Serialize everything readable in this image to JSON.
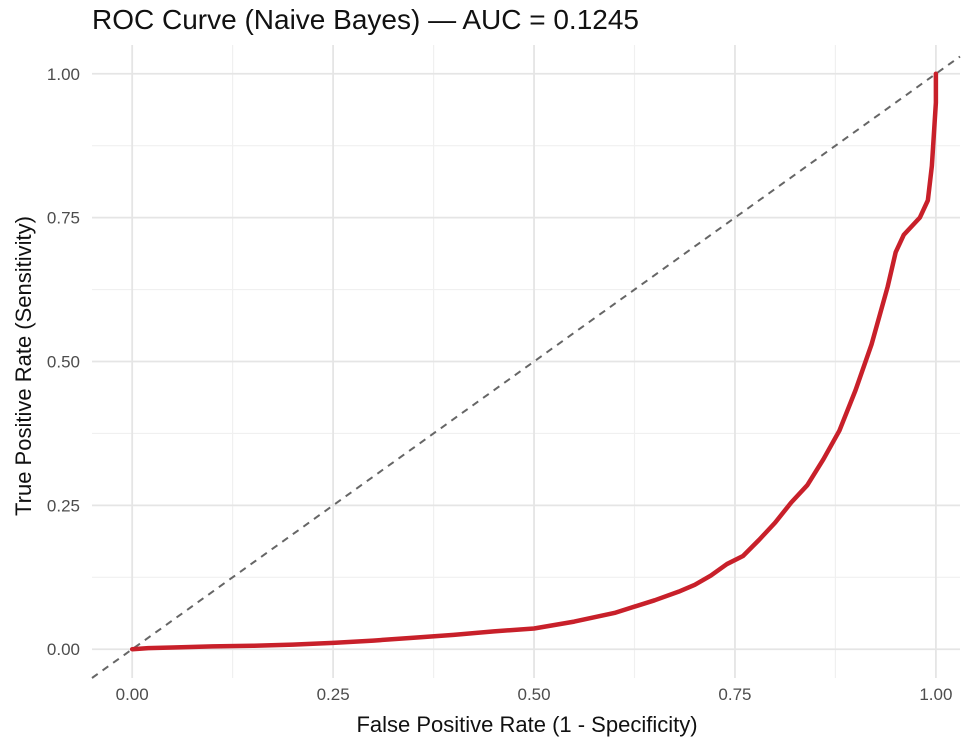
{
  "chart_data": {
    "type": "line",
    "title": "ROC Curve (Naive Bayes) — AUC = 0.1245",
    "xlabel": "False Positive Rate (1 - Specificity)",
    "ylabel": "True Positive Rate (Sensitivity)",
    "xlim": [
      -0.05,
      1.03
    ],
    "ylim": [
      -0.05,
      1.05
    ],
    "grid": true,
    "legend": "none",
    "x_ticks": [
      "0.00",
      "0.25",
      "0.50",
      "0.75",
      "1.00"
    ],
    "y_ticks": [
      "0.00",
      "0.25",
      "0.50",
      "0.75",
      "1.00"
    ],
    "series": [
      {
        "color": "#c8202a",
        "x": [
          0,
          0.02,
          0.05,
          0.1,
          0.15,
          0.2,
          0.25,
          0.3,
          0.35,
          0.4,
          0.45,
          0.5,
          0.55,
          0.6,
          0.65,
          0.68,
          0.7,
          0.72,
          0.74,
          0.76,
          0.78,
          0.8,
          0.82,
          0.84,
          0.86,
          0.88,
          0.9,
          0.92,
          0.94,
          0.95,
          0.96,
          0.97,
          0.98,
          0.99,
          0.995,
          1.0,
          1.0
        ],
        "y": [
          0.0,
          0.002,
          0.003,
          0.005,
          0.006,
          0.008,
          0.011,
          0.015,
          0.02,
          0.025,
          0.031,
          0.036,
          0.048,
          0.063,
          0.085,
          0.1,
          0.112,
          0.128,
          0.148,
          0.162,
          0.19,
          0.22,
          0.255,
          0.285,
          0.33,
          0.38,
          0.45,
          0.53,
          0.63,
          0.69,
          0.72,
          0.735,
          0.75,
          0.78,
          0.84,
          0.95,
          1.0
        ]
      },
      {
        "color": "#666666",
        "style": "dashed",
        "x": [
          -0.05,
          1.03
        ],
        "y": [
          -0.05,
          1.03
        ]
      }
    ]
  }
}
